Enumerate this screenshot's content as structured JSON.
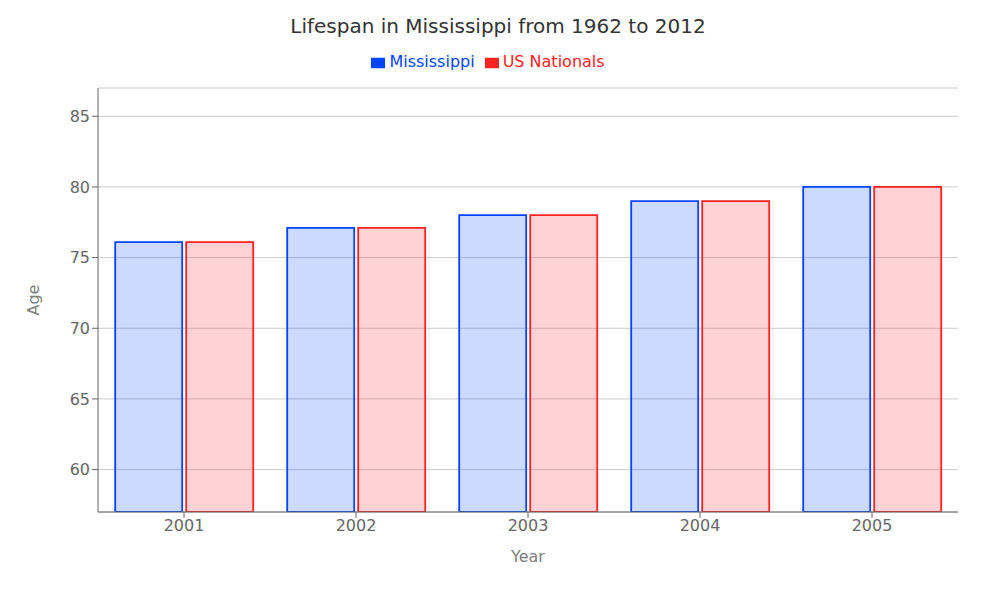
{
  "chart_data": {
    "type": "bar",
    "title": "Lifespan in Mississippi from 1962 to 2012",
    "x_label": "Year",
    "y_label": "Age",
    "categories": [
      "2001",
      "2002",
      "2003",
      "2004",
      "2005"
    ],
    "series": [
      {
        "name": "Mississippi",
        "color": "#0044ff",
        "values": [
          76.1,
          77.1,
          78.0,
          79.0,
          80.0
        ]
      },
      {
        "name": "US Nationals",
        "color": "#ff2222",
        "values": [
          76.1,
          77.1,
          78.0,
          79.0,
          80.0
        ]
      }
    ],
    "ylim": [
      57,
      87
    ],
    "yticks": [
      60,
      65,
      70,
      75,
      80,
      85
    ],
    "grid": true,
    "legend": "top"
  }
}
